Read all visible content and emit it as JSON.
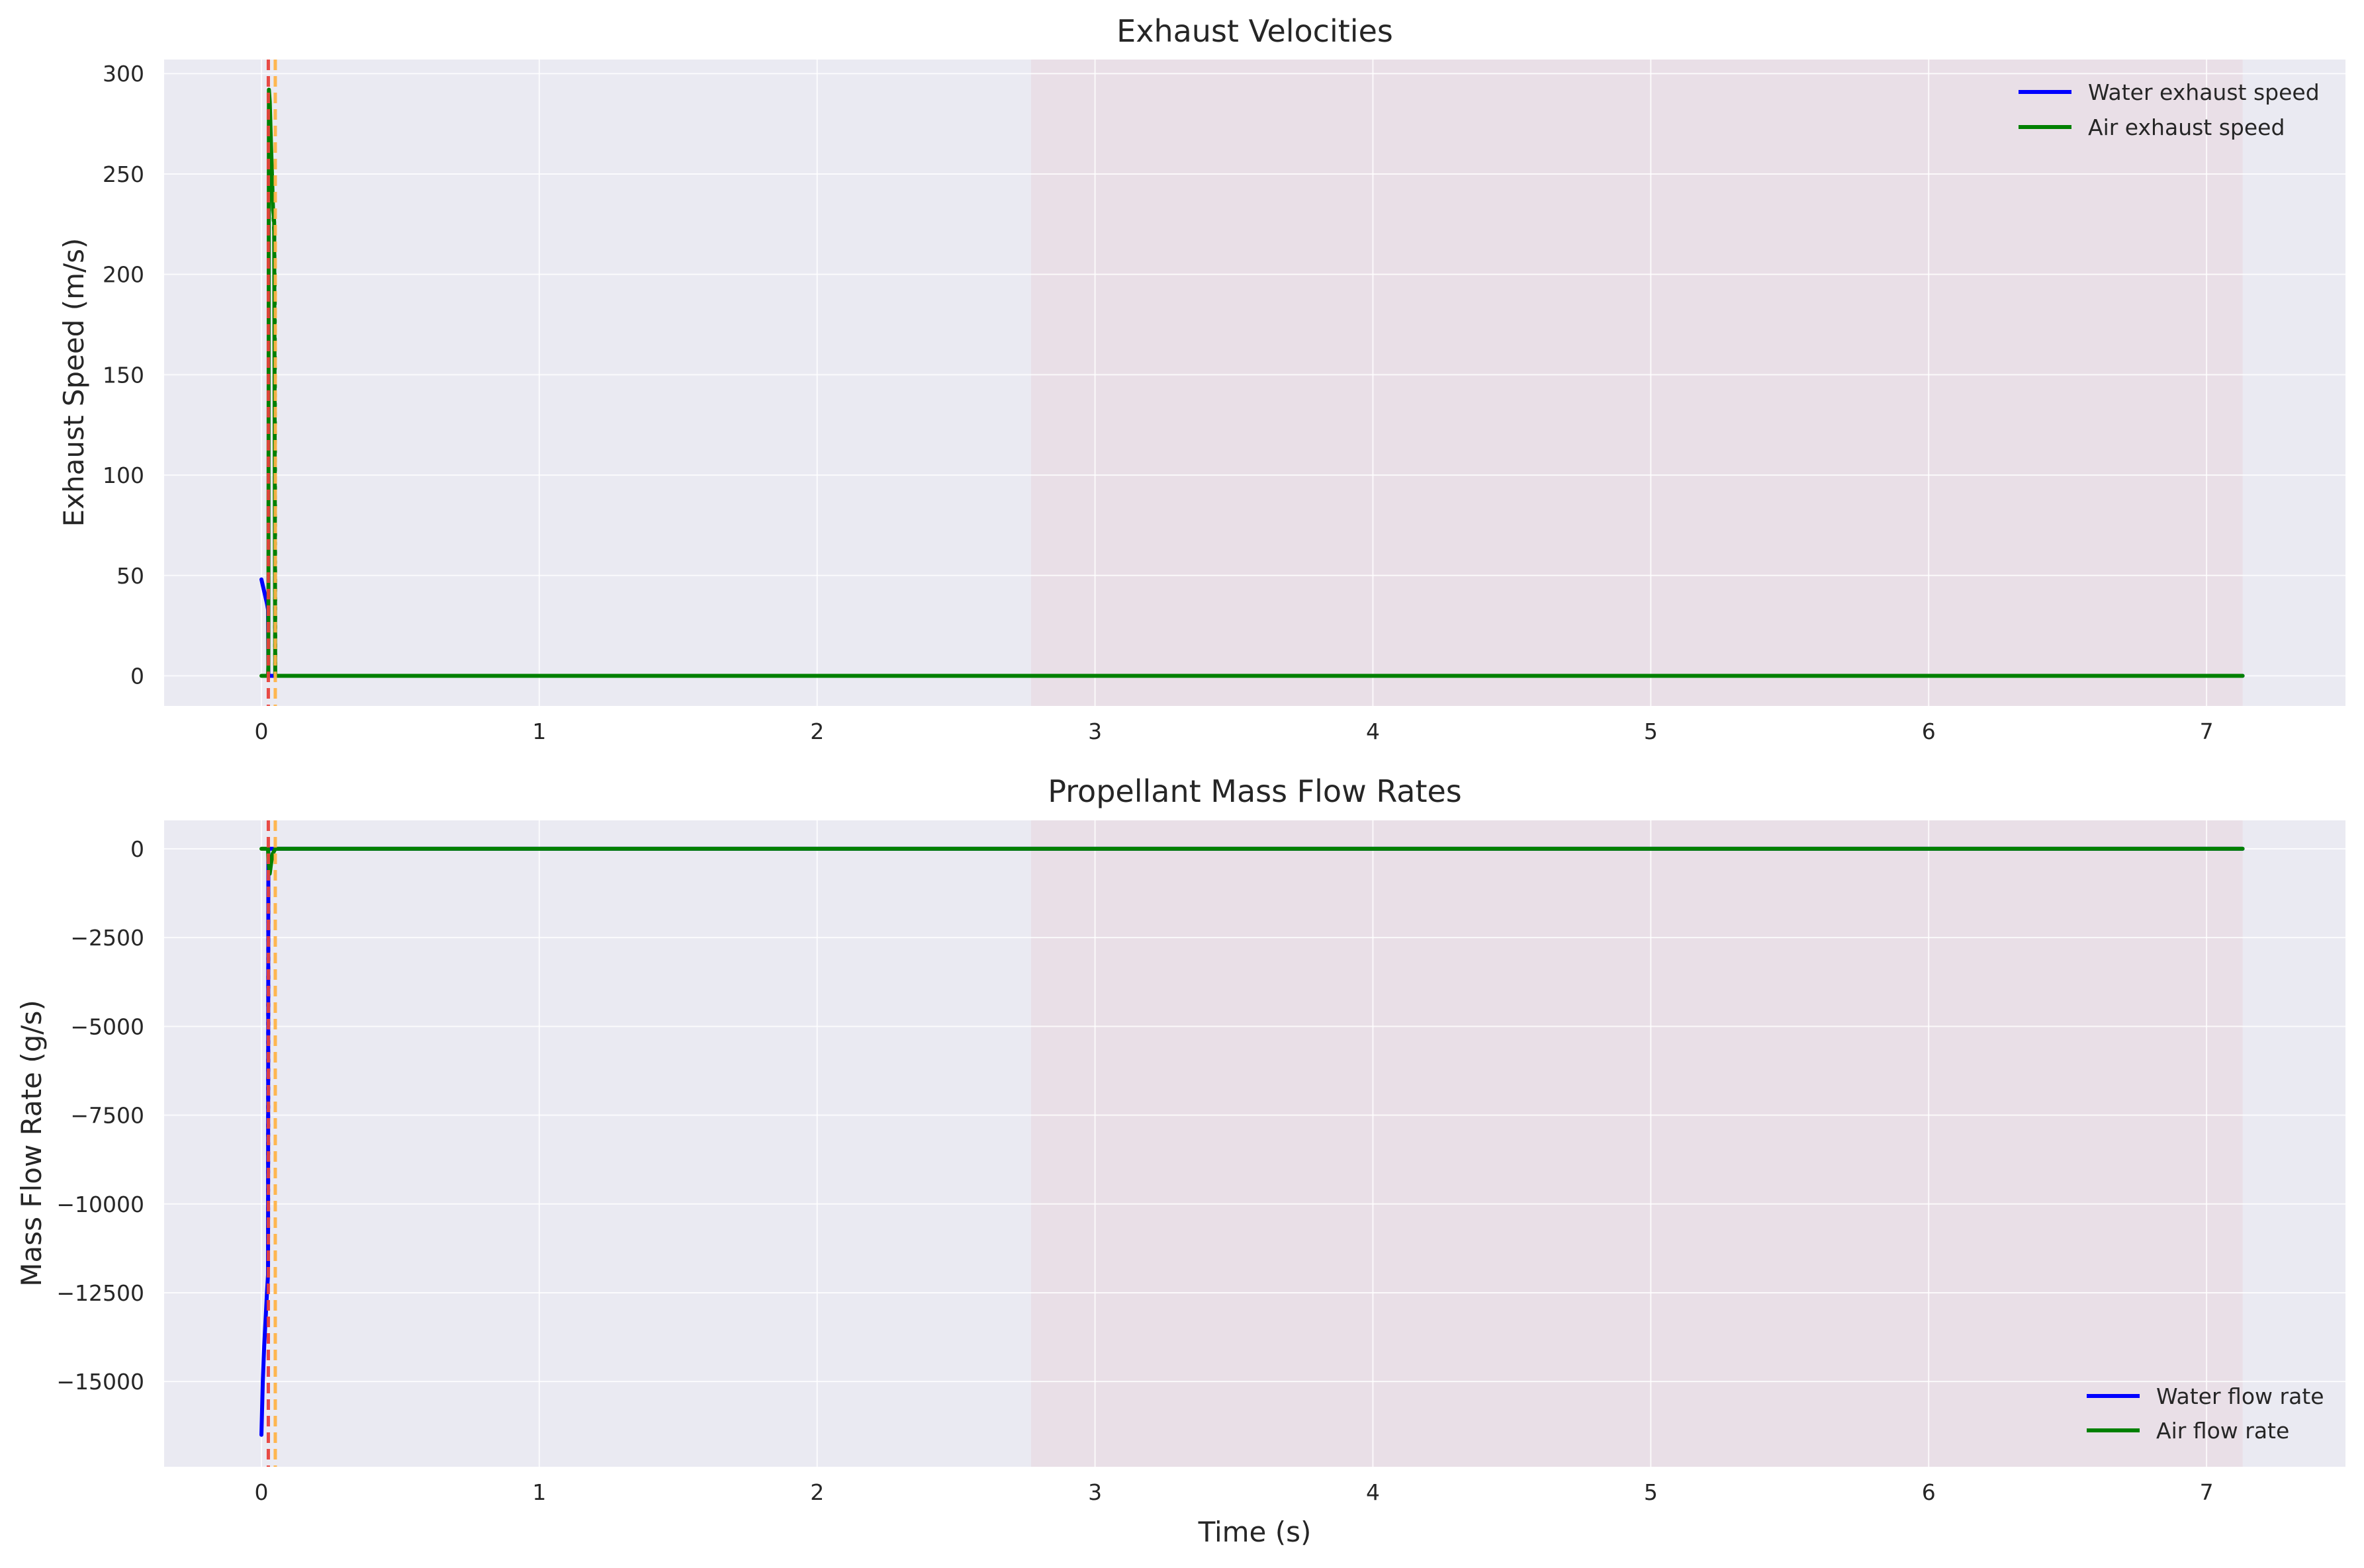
{
  "colors": {
    "background": "#eaeaf2",
    "grid": "#ffffff",
    "shade": "#e9dfe7",
    "water": "#0000ff",
    "air": "#008000",
    "marker_red": "#e8413b",
    "marker_orange": "#ffb347"
  },
  "chart_data": [
    {
      "type": "line",
      "title": "Exhaust Velocities",
      "xlabel": "",
      "ylabel": "Exhaust Speed (m/s)",
      "xlim": [
        -0.35,
        7.5
      ],
      "ylim": [
        -15,
        307
      ],
      "xticks": [
        0,
        1,
        2,
        3,
        4,
        5,
        6,
        7
      ],
      "xtick_labels": [
        "0",
        "1",
        "2",
        "3",
        "4",
        "5",
        "6",
        "7"
      ],
      "yticks": [
        0,
        50,
        100,
        150,
        200,
        250,
        300
      ],
      "ytick_labels": [
        "0",
        "50",
        "100",
        "150",
        "200",
        "250",
        "300"
      ],
      "grid": true,
      "legend_position": "top-right",
      "shaded_x_range": [
        2.77,
        7.13
      ],
      "vertical_markers": [
        {
          "x": 0.025,
          "color": "red",
          "style": "dashed"
        },
        {
          "x": 0.05,
          "color": "orange",
          "style": "dashed"
        }
      ],
      "series": [
        {
          "name": "Water exhaust speed",
          "color": "water",
          "style": "solid",
          "x": [
            0.0,
            0.01,
            0.02,
            0.024,
            0.025,
            0.03,
            7.13
          ],
          "y": [
            48,
            42,
            36,
            33,
            0,
            0,
            0
          ]
        },
        {
          "name": "Air exhaust speed",
          "color": "air",
          "style": "solid",
          "x": [
            0.0,
            0.024,
            0.025,
            0.027,
            0.03,
            0.034,
            0.038,
            0.042,
            0.044,
            0.046,
            0.05,
            0.06,
            7.13
          ],
          "y": [
            0,
            0,
            5,
            292,
            286,
            268,
            250,
            232,
            230,
            226,
            0,
            0,
            0
          ]
        },
        {
          "name": "",
          "color": "air",
          "style": "dotted",
          "x": [
            0.044,
            0.046,
            0.048,
            0.05
          ],
          "y": [
            228,
            222,
            190,
            0
          ]
        }
      ]
    },
    {
      "type": "line",
      "title": "Propellant Mass Flow Rates",
      "xlabel": "Time (s)",
      "ylabel": "Mass Flow Rate (g/s)",
      "xlim": [
        -0.35,
        7.5
      ],
      "ylim": [
        -17400,
        800
      ],
      "xticks": [
        0,
        1,
        2,
        3,
        4,
        5,
        6,
        7
      ],
      "xtick_labels": [
        "0",
        "1",
        "2",
        "3",
        "4",
        "5",
        "6",
        "7"
      ],
      "yticks": [
        0,
        -2500,
        -5000,
        -7500,
        -10000,
        -12500,
        -15000
      ],
      "ytick_labels": [
        "0",
        "−2500",
        "−5000",
        "−7500",
        "−10000",
        "−12500",
        "−15000"
      ],
      "grid": true,
      "legend_position": "bottom-right",
      "shaded_x_range": [
        2.77,
        7.13
      ],
      "vertical_markers": [
        {
          "x": 0.025,
          "color": "red",
          "style": "dashed"
        },
        {
          "x": 0.05,
          "color": "orange",
          "style": "dashed"
        }
      ],
      "series": [
        {
          "name": "Water flow rate",
          "color": "water",
          "style": "solid",
          "x": [
            0.0,
            0.005,
            0.01,
            0.02,
            0.024,
            0.025,
            0.03,
            7.13
          ],
          "y": [
            -16500,
            -15000,
            -14000,
            -12500,
            -12000,
            0,
            0,
            0
          ]
        },
        {
          "name": "",
          "color": "water",
          "style": "dotted",
          "x": [
            0.024,
            0.025
          ],
          "y": [
            -12000,
            -800
          ]
        },
        {
          "name": "Air flow rate",
          "color": "air",
          "style": "solid",
          "x": [
            0.0,
            0.024,
            0.025,
            0.03,
            0.035,
            0.04,
            0.05,
            0.06,
            7.13
          ],
          "y": [
            0,
            0,
            -300,
            -700,
            -400,
            -150,
            0,
            0,
            0
          ]
        }
      ]
    }
  ]
}
